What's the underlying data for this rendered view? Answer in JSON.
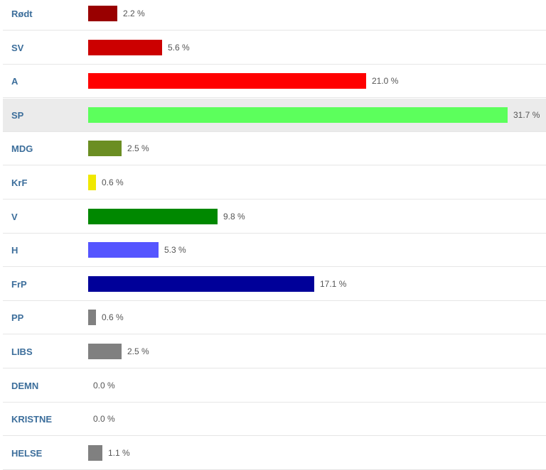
{
  "chart_data": {
    "type": "bar",
    "orientation": "horizontal",
    "unit": "%",
    "highlighted_category": "SP",
    "categories": [
      "Rødt",
      "SV",
      "A",
      "SP",
      "MDG",
      "KrF",
      "V",
      "H",
      "FrP",
      "PP",
      "LIBS",
      "DEMN",
      "KRISTNE",
      "HELSE"
    ],
    "values": [
      2.2,
      5.6,
      21.0,
      31.7,
      2.5,
      0.6,
      9.8,
      5.3,
      17.1,
      0.6,
      2.5,
      0.0,
      0.0,
      1.1
    ],
    "value_labels": [
      "2.2 %",
      "5.6 %",
      "21.0 %",
      "31.7 %",
      "2.5 %",
      "0.6 %",
      "9.8 %",
      "5.3 %",
      "17.1 %",
      "0.6 %",
      "2.5 %",
      "0.0 %",
      "0.0 %",
      "1.1 %"
    ],
    "colors": [
      "#990000",
      "#cc0000",
      "#ff0000",
      "#5cff5c",
      "#6b8e23",
      "#f0e800",
      "#008800",
      "#5555ff",
      "#000099",
      "#808080",
      "#808080",
      "#808080",
      "#808080",
      "#808080"
    ],
    "xlim": [
      0,
      31.7
    ]
  }
}
